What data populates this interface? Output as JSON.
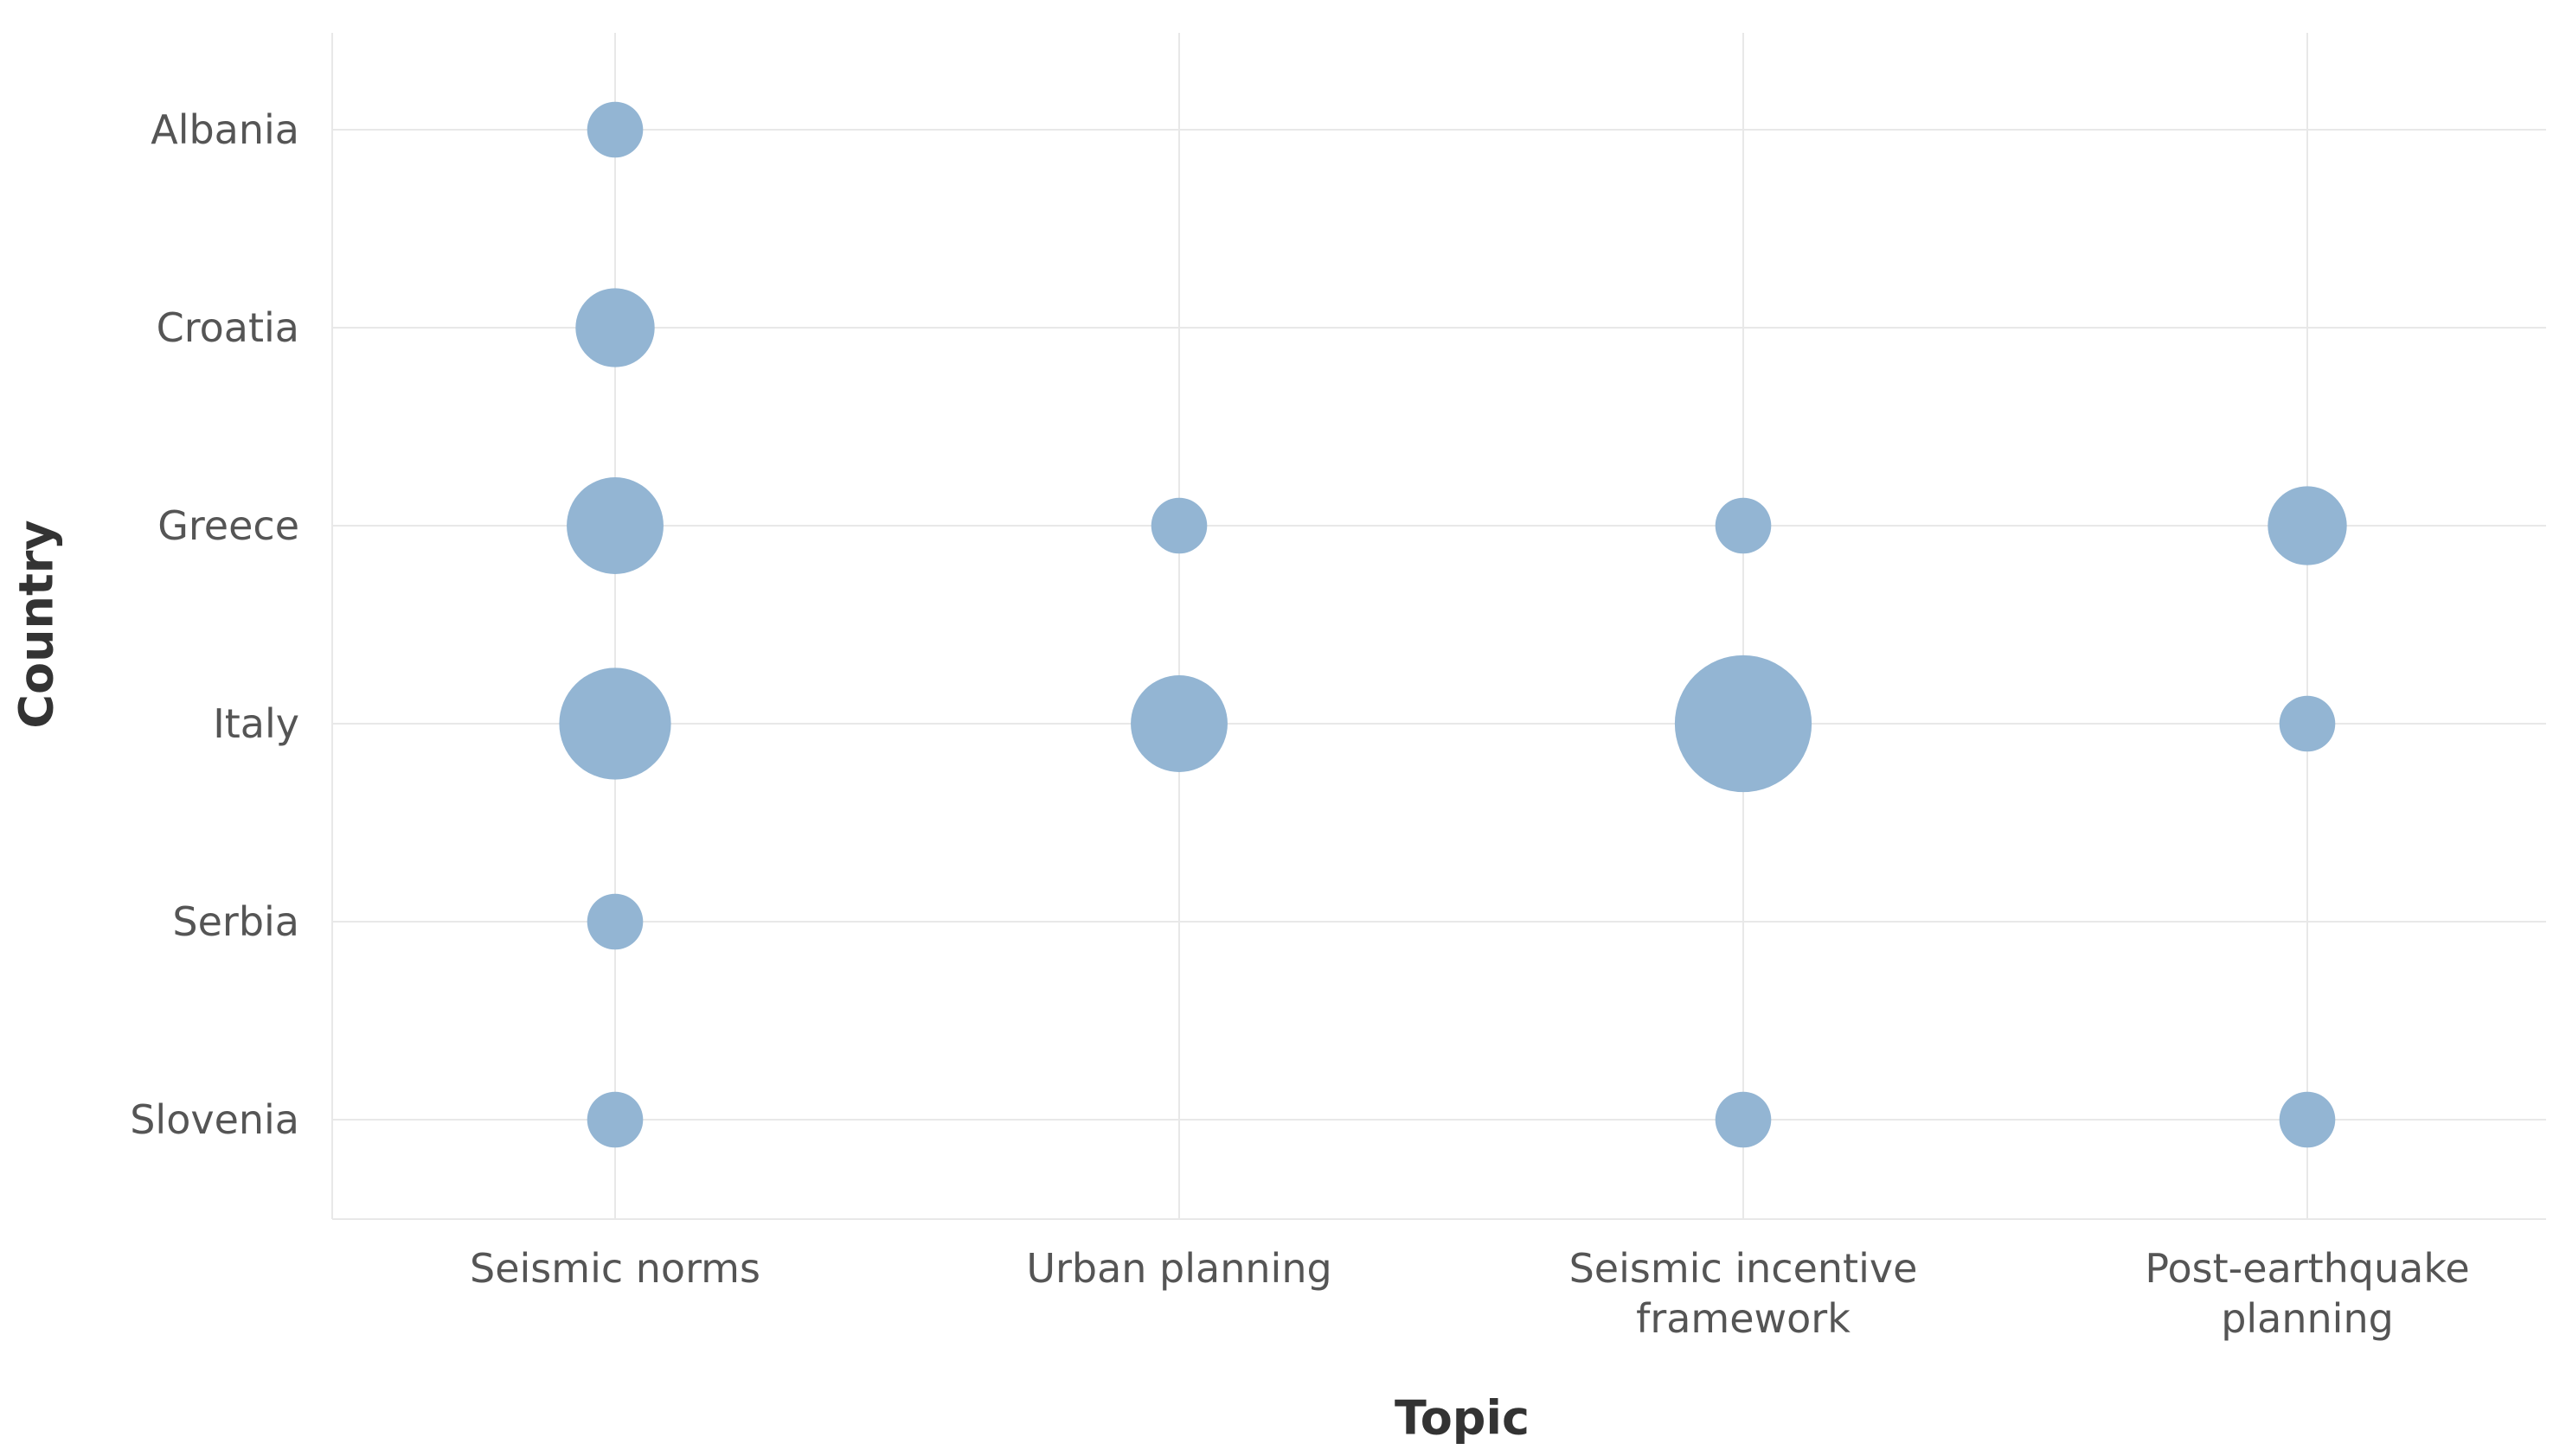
{
  "chart_data": {
    "type": "bubble",
    "x_label": "Topic",
    "y_label": "Country",
    "x_categories": [
      "Seismic norms",
      "Urban planning",
      "Seismic incentive framework",
      "Post-earthquake planning"
    ],
    "y_categories": [
      "Albania",
      "Croatia",
      "Greece",
      "Italy",
      "Serbia",
      "Slovenia"
    ],
    "color": "#93b5d3",
    "grid": true,
    "points": [
      {
        "x": "Seismic norms",
        "y": "Albania",
        "size": 1
      },
      {
        "x": "Seismic norms",
        "y": "Croatia",
        "size": 2
      },
      {
        "x": "Seismic norms",
        "y": "Greece",
        "size": 3
      },
      {
        "x": "Seismic norms",
        "y": "Italy",
        "size": 4
      },
      {
        "x": "Seismic norms",
        "y": "Serbia",
        "size": 1
      },
      {
        "x": "Seismic norms",
        "y": "Slovenia",
        "size": 1
      },
      {
        "x": "Urban planning",
        "y": "Greece",
        "size": 1
      },
      {
        "x": "Urban planning",
        "y": "Italy",
        "size": 3
      },
      {
        "x": "Seismic incentive framework",
        "y": "Greece",
        "size": 1
      },
      {
        "x": "Seismic incentive framework",
        "y": "Italy",
        "size": 6
      },
      {
        "x": "Seismic incentive framework",
        "y": "Slovenia",
        "size": 1
      },
      {
        "x": "Post-earthquake planning",
        "y": "Greece",
        "size": 2
      },
      {
        "x": "Post-earthquake planning",
        "y": "Italy",
        "size": 1
      },
      {
        "x": "Post-earthquake planning",
        "y": "Slovenia",
        "size": 1
      }
    ]
  }
}
